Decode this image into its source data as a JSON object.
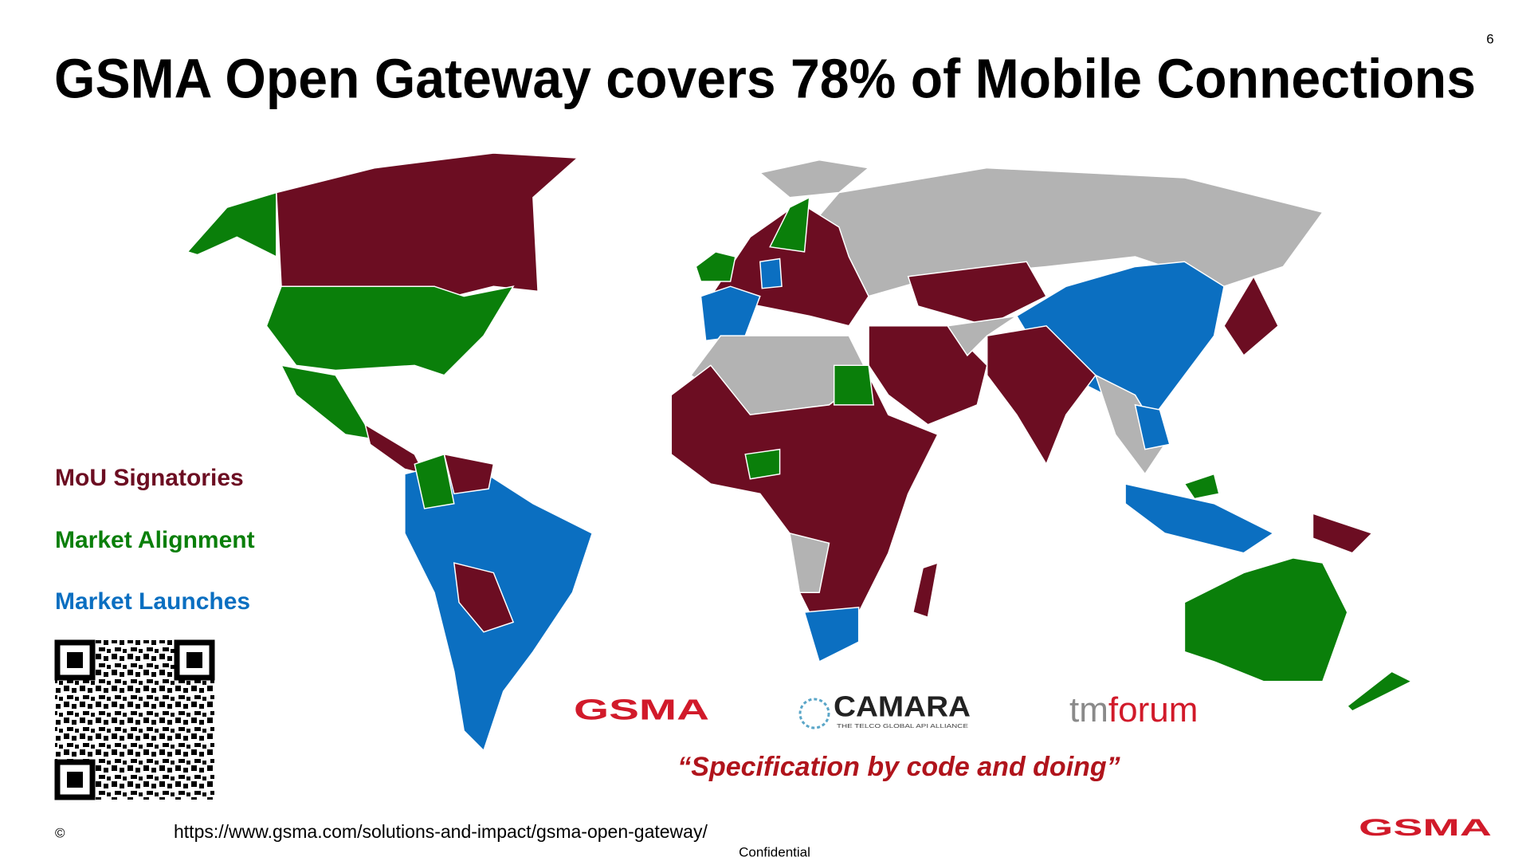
{
  "slide": {
    "page_number": "6",
    "title": "GSMA Open Gateway covers 78% of Mobile Connections",
    "legend": [
      {
        "label": "MoU Signatories",
        "color": "#6c0d22"
      },
      {
        "label": "Market Alignment",
        "color": "#0a7f0a"
      },
      {
        "label": "Market Launches",
        "color": "#0b6fc1"
      }
    ],
    "logos": {
      "gsma": "GSMA",
      "camara": "CAMARA",
      "camara_tagline": "THE TELCO GLOBAL API ALLIANCE",
      "tmforum_tm": "tm",
      "tmforum_forum": "forum"
    },
    "quote": "“Specification by code and doing”",
    "copyright": "©",
    "url": "https://www.gsma.com/solutions-and-impact/gsma-open-gateway/",
    "footer_logo": "GSMA",
    "confidential": "Confidential"
  }
}
